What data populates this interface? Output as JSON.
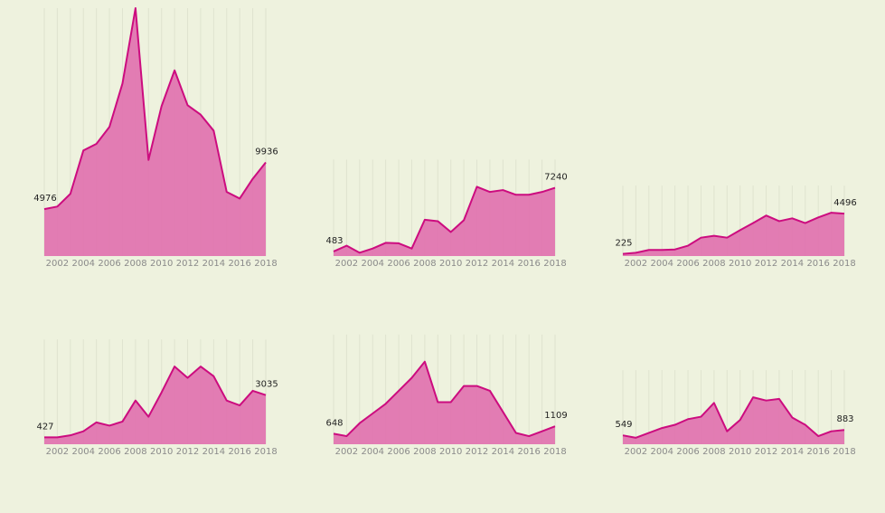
{
  "chart_data": [
    {
      "type": "area",
      "x": [
        2001,
        2002,
        2003,
        2004,
        2005,
        2006,
        2007,
        2008,
        2009,
        2010,
        2011,
        2012,
        2013,
        2014,
        2015,
        2016,
        2017,
        2018
      ],
      "values": [
        4976,
        5250,
        6600,
        11200,
        11900,
        13700,
        18300,
        26300,
        10200,
        15900,
        19700,
        16000,
        15000,
        13300,
        6800,
        6100,
        8200,
        9936
      ],
      "ylim": [
        0,
        26300
      ],
      "xticks": [
        2002,
        2004,
        2006,
        2008,
        2010,
        2012,
        2014,
        2016,
        2018
      ],
      "labels": {
        "first": "4976",
        "last": "9936"
      }
    },
    {
      "type": "area",
      "x": [
        2001,
        2002,
        2003,
        2004,
        2005,
        2006,
        2007,
        2008,
        2009,
        2010,
        2011,
        2012,
        2013,
        2014,
        2015,
        2016,
        2017,
        2018
      ],
      "values": [
        483,
        1100,
        350,
        800,
        1400,
        1350,
        800,
        3850,
        3700,
        2550,
        3800,
        7350,
        6800,
        7000,
        6500,
        6500,
        6800,
        7240
      ],
      "ylim": [
        0,
        26300
      ],
      "xticks": [
        2002,
        2004,
        2006,
        2008,
        2010,
        2012,
        2014,
        2016,
        2018
      ],
      "labels": {
        "first": "483",
        "last": "7240"
      }
    },
    {
      "type": "area",
      "x": [
        2001,
        2002,
        2003,
        2004,
        2005,
        2006,
        2007,
        2008,
        2009,
        2010,
        2011,
        2012,
        2013,
        2014,
        2015,
        2016,
        2017,
        2018
      ],
      "values": [
        225,
        350,
        650,
        650,
        700,
        1100,
        1950,
        2150,
        1950,
        2750,
        3500,
        4300,
        3700,
        4000,
        3500,
        4100,
        4600,
        4496
      ],
      "ylim": [
        0,
        26300
      ],
      "xticks": [
        2002,
        2004,
        2006,
        2008,
        2010,
        2012,
        2014,
        2016,
        2018
      ],
      "labels": {
        "first": "225",
        "last": "4496"
      }
    },
    {
      "type": "area",
      "x": [
        2001,
        2002,
        2003,
        2004,
        2005,
        2006,
        2007,
        2008,
        2009,
        2010,
        2011,
        2012,
        2013,
        2014,
        2015,
        2016,
        2017,
        2018
      ],
      "values": [
        427,
        427,
        550,
        800,
        1350,
        1150,
        1400,
        2700,
        1700,
        3200,
        4800,
        4100,
        4800,
        4200,
        2700,
        2400,
        3300,
        3035
      ],
      "ylim": [
        0,
        7600
      ],
      "xticks": [
        2002,
        2004,
        2006,
        2008,
        2010,
        2012,
        2014,
        2016,
        2018
      ],
      "labels": {
        "first": "427",
        "last": "3035"
      }
    },
    {
      "type": "area",
      "x": [
        2001,
        2002,
        2003,
        2004,
        2005,
        2006,
        2007,
        2008,
        2009,
        2010,
        2011,
        2012,
        2013,
        2014,
        2015,
        2016,
        2017,
        2018
      ],
      "values": [
        648,
        500,
        1300,
        1900,
        2500,
        3300,
        4100,
        5100,
        2600,
        2600,
        3600,
        3600,
        3300,
        2000,
        700,
        500,
        800,
        1109
      ],
      "ylim": [
        0,
        7600
      ],
      "xticks": [
        2002,
        2004,
        2006,
        2008,
        2010,
        2012,
        2014,
        2016,
        2018
      ],
      "labels": {
        "first": "648",
        "last": "1109"
      }
    },
    {
      "type": "area",
      "x": [
        2001,
        2002,
        2003,
        2004,
        2005,
        2006,
        2007,
        2008,
        2009,
        2010,
        2011,
        2012,
        2013,
        2014,
        2015,
        2016,
        2017,
        2018
      ],
      "values": [
        549,
        400,
        700,
        1000,
        1200,
        1550,
        1700,
        2550,
        800,
        1500,
        2900,
        2700,
        2800,
        1650,
        1200,
        500,
        800,
        883
      ],
      "ylim": [
        0,
        7600
      ],
      "xticks": [
        2002,
        2004,
        2006,
        2008,
        2010,
        2012,
        2014,
        2016,
        2018
      ],
      "labels": {
        "first": "549",
        "last": "883"
      }
    }
  ],
  "colors": {
    "background": "#eef2de",
    "area_fill": "#e075b0",
    "line": "#cc0c7f",
    "gridline": "#dfe3cf",
    "tick_text": "#8a8a8a",
    "label_text": "#222222"
  }
}
